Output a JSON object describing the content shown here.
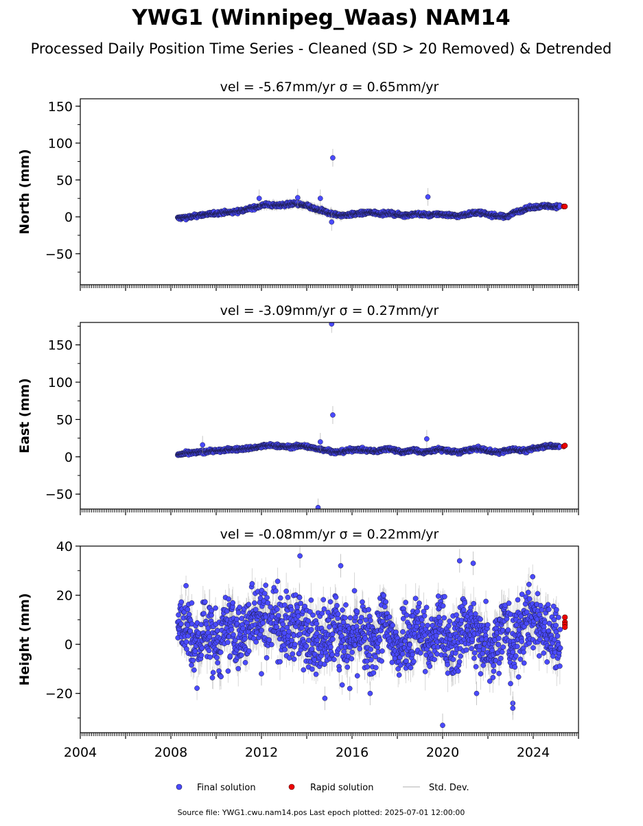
{
  "title": "YWG1 (Winnipeg_Waas) NAM14",
  "subtitle": "Processed Daily Position Time Series - Cleaned (SD > 20 Removed) & Detrended",
  "footer": "Source file: YWG1.cwu.nam14.pos  Last epoch plotted: 2025-07-01 12:00:00",
  "legend": {
    "placement": "bottom-center",
    "items": [
      {
        "label": "Final solution",
        "color": "#4a4aff",
        "marker": "dot"
      },
      {
        "label": "Rapid solution",
        "color": "#ee0000",
        "marker": "dot"
      },
      {
        "label": "Std. Dev.",
        "color": "#c8c8c8",
        "marker": "line"
      }
    ]
  },
  "colors": {
    "final": "#4a4aff",
    "rapid": "#ee0000",
    "errorbar": "#a0a0a0",
    "edge": "#1a1a40"
  },
  "chart_data": [
    {
      "type": "scatter",
      "panel_title": "vel = -5.67mm/yr   σ = 0.65mm/yr",
      "ylabel": "North (mm)",
      "xlim": [
        2004.0,
        2026.0
      ],
      "ylim": [
        -92,
        160
      ],
      "xticks": [
        2004,
        2008,
        2012,
        2016,
        2020,
        2024
      ],
      "yticks": [
        -50,
        0,
        50,
        100,
        150
      ],
      "grid": false,
      "final": {
        "x": [
          2008.3,
          2008.6,
          2008.9,
          2009.2,
          2009.5,
          2009.8,
          2010.1,
          2010.4,
          2010.7,
          2011.0,
          2011.3,
          2011.6,
          2011.9,
          2012.2,
          2012.6,
          2012.9,
          2013.2,
          2013.5,
          2013.8,
          2014.1,
          2014.4,
          2014.7,
          2015.0,
          2015.3,
          2015.6,
          2015.9,
          2016.2,
          2016.5,
          2016.8,
          2017.1,
          2017.4,
          2017.7,
          2018.0,
          2018.3,
          2018.6,
          2018.9,
          2019.2,
          2019.5,
          2019.8,
          2020.1,
          2020.4,
          2020.7,
          2021.0,
          2021.3,
          2021.6,
          2021.9,
          2022.2,
          2022.5,
          2022.8,
          2023.1,
          2023.4,
          2023.7,
          2024.0,
          2024.3,
          2024.6,
          2024.9
        ],
        "y": [
          -2,
          -1,
          0,
          2,
          3,
          4,
          5,
          6,
          6,
          8,
          10,
          12,
          14,
          17,
          15,
          16,
          17,
          18,
          16,
          14,
          10,
          8,
          5,
          3,
          2,
          3,
          4,
          5,
          6,
          5,
          4,
          5,
          3,
          2,
          3,
          4,
          3,
          2,
          4,
          3,
          2,
          1,
          3,
          5,
          6,
          4,
          2,
          1,
          0,
          5,
          8,
          11,
          13,
          14,
          15,
          14
        ],
        "std": [
          4,
          3,
          3,
          4,
          3,
          3,
          4,
          3,
          3,
          4,
          4,
          4,
          5,
          6,
          5,
          5,
          5,
          6,
          5,
          6,
          6,
          5,
          6,
          5,
          4,
          4,
          4,
          4,
          4,
          4,
          4,
          4,
          4,
          4,
          4,
          4,
          4,
          4,
          4,
          4,
          4,
          4,
          4,
          4,
          4,
          4,
          4,
          4,
          4,
          4,
          4,
          4,
          4,
          4,
          4,
          4
        ]
      },
      "outliers": {
        "x": [
          2015.15,
          2011.9,
          2013.6,
          2014.6,
          2019.35,
          2015.1
        ],
        "y": [
          80,
          25,
          26,
          25,
          27,
          -7
        ]
      },
      "rapid": {
        "x": [
          2025.35,
          2025.4
        ],
        "y": [
          14,
          14
        ]
      }
    },
    {
      "type": "scatter",
      "panel_title": "vel = -3.09mm/yr   σ = 0.27mm/yr",
      "ylabel": "East (mm)",
      "xlim": [
        2004.0,
        2026.0
      ],
      "ylim": [
        -70,
        180
      ],
      "xticks": [
        2004,
        2008,
        2012,
        2016,
        2020,
        2024
      ],
      "yticks": [
        -50,
        0,
        50,
        100,
        150
      ],
      "grid": false,
      "final": {
        "x": [
          2008.3,
          2008.6,
          2008.9,
          2009.2,
          2009.5,
          2009.8,
          2010.1,
          2010.4,
          2010.7,
          2011.0,
          2011.3,
          2011.6,
          2011.9,
          2012.2,
          2012.6,
          2012.9,
          2013.2,
          2013.5,
          2013.8,
          2014.1,
          2014.4,
          2014.7,
          2015.0,
          2015.3,
          2015.6,
          2015.9,
          2016.2,
          2016.5,
          2016.8,
          2017.1,
          2017.4,
          2017.7,
          2018.0,
          2018.3,
          2018.6,
          2018.9,
          2019.2,
          2019.5,
          2019.8,
          2020.1,
          2020.4,
          2020.7,
          2021.0,
          2021.3,
          2021.6,
          2021.9,
          2022.2,
          2022.5,
          2022.8,
          2023.1,
          2023.4,
          2023.7,
          2024.0,
          2024.3,
          2024.6,
          2024.9
        ],
        "y": [
          3,
          4,
          5,
          6,
          7,
          8,
          8,
          9,
          10,
          10,
          11,
          12,
          13,
          15,
          15,
          14,
          13,
          14,
          15,
          13,
          11,
          10,
          8,
          6,
          7,
          9,
          10,
          9,
          8,
          7,
          10,
          11,
          8,
          6,
          9,
          8,
          6,
          8,
          10,
          9,
          7,
          6,
          8,
          10,
          11,
          9,
          7,
          6,
          8,
          10,
          9,
          8,
          11,
          13,
          15,
          14
        ],
        "std": [
          3,
          3,
          3,
          3,
          3,
          3,
          3,
          3,
          3,
          3,
          4,
          4,
          4,
          4,
          4,
          4,
          4,
          4,
          4,
          4,
          4,
          4,
          4,
          4,
          3,
          3,
          3,
          3,
          3,
          3,
          3,
          3,
          3,
          3,
          3,
          3,
          3,
          3,
          3,
          3,
          3,
          3,
          3,
          3,
          3,
          3,
          3,
          3,
          3,
          3,
          3,
          3,
          3,
          3,
          3,
          3
        ]
      },
      "outliers": {
        "x": [
          2015.1,
          2015.15,
          2009.4,
          2014.6,
          2019.3,
          2014.5
        ],
        "y": [
          178,
          56,
          16,
          20,
          24,
          -68
        ]
      },
      "rapid": {
        "x": [
          2025.35,
          2025.4
        ],
        "y": [
          14,
          15
        ]
      }
    },
    {
      "type": "scatter",
      "panel_title": "vel = -0.08mm/yr   σ = 0.22mm/yr",
      "ylabel": "Height (mm)",
      "xlim": [
        2004.0,
        2026.0
      ],
      "ylim": [
        -36,
        40
      ],
      "xticks": [
        2004,
        2008,
        2012,
        2016,
        2020,
        2024
      ],
      "xticklabels": [
        "2004",
        "2008",
        "2012",
        "2016",
        "2020",
        "2024"
      ],
      "yticks": [
        -20,
        0,
        20,
        40
      ],
      "grid": false,
      "final": {
        "x": [
          2008.3,
          2008.6,
          2008.9,
          2009.2,
          2009.5,
          2009.8,
          2010.1,
          2010.4,
          2010.7,
          2011.0,
          2011.3,
          2011.6,
          2011.9,
          2012.2,
          2012.6,
          2012.9,
          2013.2,
          2013.5,
          2013.8,
          2014.1,
          2014.4,
          2014.7,
          2015.0,
          2015.3,
          2015.6,
          2015.9,
          2016.2,
          2016.5,
          2016.8,
          2017.1,
          2017.4,
          2017.7,
          2018.0,
          2018.3,
          2018.6,
          2018.9,
          2019.2,
          2019.5,
          2019.8,
          2020.1,
          2020.4,
          2020.7,
          2021.0,
          2021.3,
          2021.6,
          2021.9,
          2022.2,
          2022.5,
          2022.8,
          2023.1,
          2023.4,
          2023.7,
          2024.0,
          2024.3,
          2024.6,
          2024.9
        ],
        "y": [
          6,
          10,
          2,
          -3,
          8,
          3,
          -1,
          5,
          7,
          2,
          4,
          12,
          14,
          9,
          12,
          8,
          5,
          10,
          3,
          7,
          -1,
          6,
          3,
          9,
          2,
          0,
          5,
          4,
          -2,
          3,
          10,
          4,
          -4,
          6,
          2,
          9,
          3,
          -2,
          8,
          5,
          -4,
          3,
          10,
          6,
          1,
          4,
          -3,
          5,
          8,
          -2,
          6,
          9,
          12,
          8,
          5,
          3
        ],
        "spread": [
          8,
          9,
          9,
          9,
          9,
          9,
          9,
          9,
          9,
          9,
          9,
          9,
          10,
          9,
          9,
          9,
          9,
          9,
          9,
          9,
          9,
          9,
          9,
          9,
          9,
          9,
          9,
          9,
          9,
          9,
          9,
          9,
          9,
          9,
          9,
          9,
          9,
          9,
          9,
          9,
          9,
          9,
          9,
          9,
          9,
          9,
          9,
          9,
          9,
          9,
          9,
          9,
          9,
          9,
          9,
          9
        ],
        "std": [
          6,
          6,
          6,
          6,
          6,
          6,
          6,
          6,
          6,
          6,
          6,
          6,
          6,
          6,
          6,
          6,
          6,
          6,
          6,
          6,
          6,
          6,
          6,
          6,
          6,
          6,
          6,
          6,
          6,
          6,
          6,
          6,
          6,
          6,
          6,
          6,
          6,
          6,
          6,
          6,
          6,
          6,
          6,
          6,
          6,
          6,
          6,
          6,
          6,
          6,
          6,
          6,
          6,
          6,
          6,
          6
        ]
      },
      "outliers": {
        "x": [
          2013.7,
          2015.5,
          2014.8,
          2020.0,
          2020.75,
          2021.35,
          2023.1,
          2023.1,
          2021.5,
          2016.8,
          2015.9,
          2012.0,
          2023.0
        ],
        "y": [
          36,
          32,
          -22,
          -33,
          34,
          33,
          -24,
          -26,
          -20,
          -20,
          -18,
          -12,
          -16
        ]
      },
      "rapid": {
        "x": [
          2025.4,
          2025.4,
          2025.4,
          2025.4
        ],
        "y": [
          11,
          9,
          8,
          7
        ]
      },
      "extra_final": {
        "x": [
          2025.2
        ],
        "y": [
          -1.5
        ]
      }
    }
  ]
}
